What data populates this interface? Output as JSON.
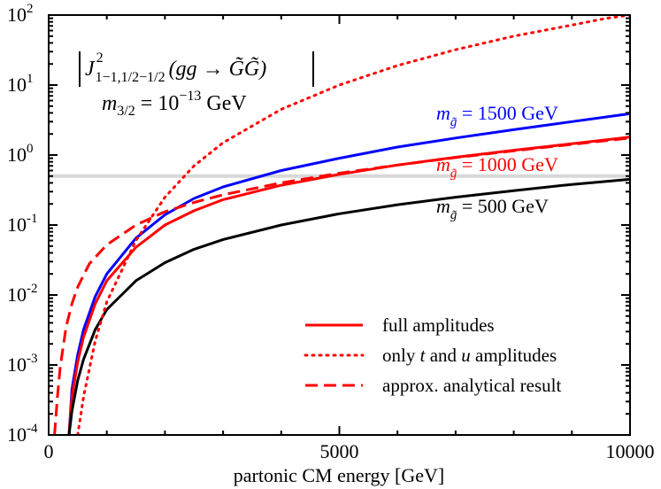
{
  "chart_data": {
    "type": "line",
    "title": "",
    "xlabel": "partonic CM energy [GeV]",
    "ylabel": "",
    "xlim": [
      0,
      10000
    ],
    "ylim": [
      0.0001,
      100
    ],
    "yscale": "log",
    "x_ticks": [
      {
        "value": 0,
        "label": "0"
      },
      {
        "value": 5000,
        "label": "5000"
      },
      {
        "value": 10000,
        "label": "10000"
      }
    ],
    "y_ticks": [
      {
        "value": 0.0001,
        "base": "10",
        "exp": "-4"
      },
      {
        "value": 0.001,
        "base": "10",
        "exp": "-3"
      },
      {
        "value": 0.01,
        "base": "10",
        "exp": "-2"
      },
      {
        "value": 0.1,
        "base": "10",
        "exp": "-1"
      },
      {
        "value": 1,
        "base": "10",
        "exp": "0"
      },
      {
        "value": 10,
        "base": "10",
        "exp": "1"
      },
      {
        "value": 100,
        "base": "10",
        "exp": "2"
      }
    ],
    "reference_line": {
      "y": 0.5,
      "color": "#d8d8d8"
    },
    "annotation": {
      "formula_J": "J",
      "formula_J_sup": "2",
      "formula_J_sub": "1−1,1/2−1/2",
      "formula_process": "(gg → G̃G̃)",
      "mass_label": "m",
      "mass_sub": "3/2",
      "mass_value_text": " = 10",
      "mass_exp": "−13",
      "mass_unit": " GeV"
    },
    "series": [
      {
        "name_main": "m",
        "name_sub": "g̃",
        "name_value": " = 1500 GeV",
        "style": "solid",
        "color": "#0000ff",
        "points": [
          [
            350,
            0.0001
          ],
          [
            400,
            0.00045
          ],
          [
            500,
            0.0014
          ],
          [
            600,
            0.0032
          ],
          [
            800,
            0.0095
          ],
          [
            1000,
            0.02
          ],
          [
            1500,
            0.065
          ],
          [
            2000,
            0.14
          ],
          [
            2500,
            0.24
          ],
          [
            3000,
            0.35
          ],
          [
            4000,
            0.6
          ],
          [
            5000,
            0.9
          ],
          [
            6000,
            1.3
          ],
          [
            7000,
            1.75
          ],
          [
            8000,
            2.3
          ],
          [
            9000,
            3.0
          ],
          [
            10000,
            3.9
          ]
        ]
      },
      {
        "name_main": "m",
        "name_sub": "g̃",
        "name_value": " = 1000 GeV",
        "style": "solid",
        "color": "#ff0000",
        "points": [
          [
            350,
            0.0001
          ],
          [
            400,
            0.00035
          ],
          [
            500,
            0.0011
          ],
          [
            600,
            0.0025
          ],
          [
            800,
            0.0075
          ],
          [
            1000,
            0.016
          ],
          [
            1500,
            0.048
          ],
          [
            2000,
            0.1
          ],
          [
            2500,
            0.16
          ],
          [
            3000,
            0.23
          ],
          [
            4000,
            0.37
          ],
          [
            5000,
            0.53
          ],
          [
            6000,
            0.72
          ],
          [
            7000,
            0.93
          ],
          [
            8000,
            1.17
          ],
          [
            9000,
            1.45
          ],
          [
            10000,
            1.8
          ]
        ]
      },
      {
        "name_main": "m",
        "name_sub": "g̃",
        "name_value": " = 500 GeV",
        "style": "solid",
        "color": "#000000",
        "points": [
          [
            350,
            0.0001
          ],
          [
            400,
            0.00022
          ],
          [
            500,
            0.0006
          ],
          [
            600,
            0.0012
          ],
          [
            800,
            0.0032
          ],
          [
            1000,
            0.0062
          ],
          [
            1500,
            0.016
          ],
          [
            2000,
            0.029
          ],
          [
            2500,
            0.045
          ],
          [
            3000,
            0.062
          ],
          [
            4000,
            0.1
          ],
          [
            5000,
            0.145
          ],
          [
            6000,
            0.195
          ],
          [
            7000,
            0.25
          ],
          [
            8000,
            0.31
          ],
          [
            9000,
            0.38
          ],
          [
            10000,
            0.45
          ]
        ]
      },
      {
        "name": "only t and u amplitudes",
        "style": "dotted",
        "color": "#ff0000",
        "points": [
          [
            500,
            0.0001
          ],
          [
            600,
            0.00035
          ],
          [
            800,
            0.0022
          ],
          [
            1000,
            0.008
          ],
          [
            1500,
            0.06
          ],
          [
            2000,
            0.25
          ],
          [
            2500,
            0.7
          ],
          [
            3000,
            1.5
          ],
          [
            4000,
            4.5
          ],
          [
            5000,
            10
          ],
          [
            6000,
            19
          ],
          [
            7000,
            32
          ],
          [
            8000,
            50
          ],
          [
            9000,
            72
          ],
          [
            9600,
            90
          ],
          [
            10000,
            100
          ]
        ]
      },
      {
        "name": "approx. analytical result",
        "style": "dashed",
        "color": "#ff0000",
        "points": [
          [
            100,
            0.0001
          ],
          [
            150,
            0.00035
          ],
          [
            200,
            0.00095
          ],
          [
            300,
            0.0035
          ],
          [
            400,
            0.0075
          ],
          [
            500,
            0.013
          ],
          [
            700,
            0.028
          ],
          [
            1000,
            0.052
          ],
          [
            1500,
            0.1
          ],
          [
            2000,
            0.155
          ],
          [
            2500,
            0.21
          ],
          [
            3000,
            0.27
          ],
          [
            4000,
            0.4
          ],
          [
            5000,
            0.55
          ],
          [
            6000,
            0.72
          ],
          [
            7000,
            0.92
          ],
          [
            8000,
            1.15
          ],
          [
            9000,
            1.42
          ],
          [
            10000,
            1.75
          ]
        ]
      }
    ],
    "legend": {
      "position": "bottom-right",
      "entries": [
        {
          "label": "full amplitudes",
          "style": "solid",
          "color": "#ff0000"
        },
        {
          "label_parts": [
            "only ",
            "t",
            " and ",
            "u",
            " amplitudes"
          ],
          "style": "dotted",
          "color": "#ff0000"
        },
        {
          "label": "approx. analytical result",
          "style": "dashed",
          "color": "#ff0000"
        }
      ]
    }
  }
}
